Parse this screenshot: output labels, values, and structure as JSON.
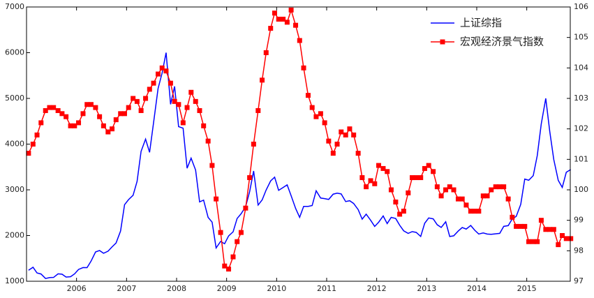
{
  "chart_data": {
    "type": "line",
    "x": [
      2005.04,
      2005.13,
      2005.21,
      2005.29,
      2005.38,
      2005.46,
      2005.54,
      2005.63,
      2005.71,
      2005.79,
      2005.88,
      2005.96,
      2006.04,
      2006.13,
      2006.21,
      2006.29,
      2006.38,
      2006.46,
      2006.54,
      2006.63,
      2006.71,
      2006.79,
      2006.88,
      2006.96,
      2007.04,
      2007.13,
      2007.21,
      2007.29,
      2007.38,
      2007.46,
      2007.54,
      2007.63,
      2007.71,
      2007.79,
      2007.88,
      2007.96,
      2008.04,
      2008.13,
      2008.21,
      2008.29,
      2008.38,
      2008.46,
      2008.54,
      2008.63,
      2008.71,
      2008.79,
      2008.88,
      2008.96,
      2009.04,
      2009.13,
      2009.21,
      2009.29,
      2009.38,
      2009.46,
      2009.54,
      2009.63,
      2009.71,
      2009.79,
      2009.88,
      2009.96,
      2010.04,
      2010.13,
      2010.21,
      2010.29,
      2010.38,
      2010.46,
      2010.54,
      2010.63,
      2010.71,
      2010.79,
      2010.88,
      2010.96,
      2011.04,
      2011.13,
      2011.21,
      2011.29,
      2011.38,
      2011.46,
      2011.54,
      2011.63,
      2011.71,
      2011.79,
      2011.88,
      2011.96,
      2012.04,
      2012.13,
      2012.21,
      2012.29,
      2012.38,
      2012.46,
      2012.54,
      2012.63,
      2012.71,
      2012.79,
      2012.88,
      2012.96,
      2013.04,
      2013.13,
      2013.21,
      2013.29,
      2013.38,
      2013.46,
      2013.54,
      2013.63,
      2013.71,
      2013.79,
      2013.88,
      2013.96,
      2014.04,
      2014.13,
      2014.21,
      2014.29,
      2014.38,
      2014.46,
      2014.54,
      2014.63,
      2014.71,
      2014.79,
      2014.88,
      2014.96,
      2015.04,
      2015.13,
      2015.21,
      2015.29,
      2015.38,
      2015.46,
      2015.54,
      2015.63,
      2015.71,
      2015.79,
      2015.88
    ],
    "series": [
      {
        "name": "上证综指",
        "color": "#0000ff",
        "axis": "y",
        "marker": false,
        "values": [
          1240,
          1306,
          1181,
          1159,
          1060,
          1080,
          1083,
          1162,
          1155,
          1092,
          1099,
          1161,
          1258,
          1299,
          1298,
          1440,
          1641,
          1672,
          1612,
          1658,
          1752,
          1837,
          2099,
          2675,
          2786,
          2881,
          3183,
          3841,
          4109,
          3820,
          4471,
          5218,
          5552,
          6000,
          4871,
          5262,
          4383,
          4348,
          3472,
          3693,
          3433,
          2736,
          2775,
          2397,
          2293,
          1729,
          1871,
          1821,
          1991,
          2082,
          2373,
          2477,
          2632,
          2959,
          3412,
          2667,
          2779,
          2996,
          3195,
          3277,
          2989,
          3051,
          3109,
          2870,
          2592,
          2398,
          2638,
          2638,
          2656,
          2979,
          2820,
          2808,
          2790,
          2905,
          2928,
          2911,
          2743,
          2762,
          2701,
          2567,
          2359,
          2468,
          2333,
          2199,
          2292,
          2428,
          2262,
          2397,
          2373,
          2225,
          2103,
          2047,
          2086,
          2069,
          1980,
          2269,
          2385,
          2365,
          2236,
          2177,
          2301,
          1979,
          1994,
          2098,
          2175,
          2141,
          2220,
          2116,
          2033,
          2056,
          2033,
          2026,
          2039,
          2048,
          2201,
          2217,
          2364,
          2420,
          2683,
          3235,
          3210,
          3310,
          3748,
          4441,
          5000,
          4277,
          3664,
          3206,
          3053,
          3383,
          3445
        ]
      },
      {
        "name": "宏观经济景气指数",
        "color": "#ff0000",
        "axis": "y2",
        "marker": true,
        "values": [
          101.2,
          101.5,
          101.8,
          102.2,
          102.6,
          102.7,
          102.7,
          102.6,
          102.5,
          102.4,
          102.1,
          102.1,
          102.2,
          102.5,
          102.8,
          102.8,
          102.7,
          102.4,
          102.1,
          101.9,
          102.0,
          102.3,
          102.5,
          102.5,
          102.7,
          103.0,
          102.9,
          102.6,
          103.0,
          103.3,
          103.5,
          103.8,
          104.0,
          103.9,
          103.5,
          102.9,
          102.8,
          102.2,
          102.7,
          103.2,
          102.9,
          102.6,
          102.1,
          101.6,
          100.8,
          99.7,
          98.6,
          97.5,
          97.4,
          97.8,
          98.3,
          98.6,
          99.4,
          100.4,
          101.5,
          102.6,
          103.6,
          104.5,
          105.3,
          105.8,
          105.6,
          105.6,
          105.5,
          105.9,
          105.4,
          104.9,
          104.0,
          103.1,
          102.7,
          102.4,
          102.5,
          102.2,
          101.6,
          101.2,
          101.5,
          101.9,
          101.8,
          102.0,
          101.8,
          101.2,
          100.4,
          100.1,
          100.3,
          100.2,
          100.8,
          100.7,
          100.6,
          100.0,
          99.6,
          99.2,
          99.3,
          99.9,
          100.4,
          100.4,
          100.4,
          100.7,
          100.8,
          100.6,
          100.1,
          99.8,
          100.0,
          100.1,
          100.0,
          99.7,
          99.7,
          99.5,
          99.3,
          99.3,
          99.3,
          99.8,
          99.8,
          100.0,
          100.1,
          100.1,
          100.1,
          99.7,
          99.1,
          98.8,
          98.8,
          98.8,
          98.3,
          98.3,
          98.3,
          99.0,
          98.7,
          98.7,
          98.7,
          98.2,
          98.5,
          98.4,
          98.4
        ]
      }
    ],
    "xlim": [
      2005.0,
      2015.87
    ],
    "xticks": [
      2006,
      2007,
      2008,
      2009,
      2010,
      2011,
      2012,
      2013,
      2014,
      2015
    ],
    "ylim": [
      1000,
      7000
    ],
    "yticks": [
      1000,
      2000,
      3000,
      4000,
      5000,
      6000,
      7000
    ],
    "y2lim": [
      97,
      106
    ],
    "y2ticks": [
      97,
      98,
      99,
      100,
      101,
      102,
      103,
      104,
      105,
      106
    ],
    "legend": "upper right"
  }
}
